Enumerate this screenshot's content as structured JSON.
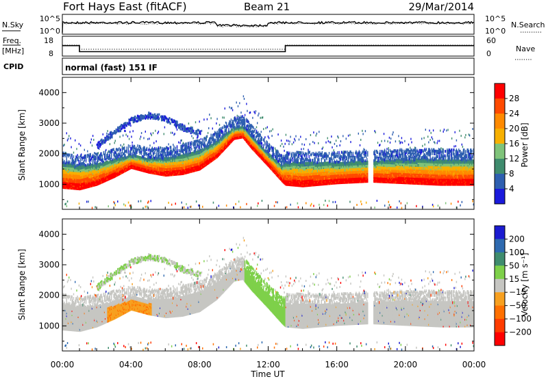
{
  "header": {
    "radar": "Fort Hays East (fitACF)",
    "beam": "Beam 21",
    "date": "29/Mar/2014"
  },
  "noise_panel": {
    "left_label": "N.Sky",
    "left_ticks": [
      "10^5",
      "10^0"
    ],
    "right_label": "N.Search",
    "right_ticks": [
      "10^5",
      "10^0"
    ]
  },
  "freq_panel": {
    "left_label_1": "Freq.",
    "left_label_2": "[MHz]",
    "left_ticks": [
      "18",
      "8"
    ],
    "right_label": "Nave",
    "right_ticks": [
      "60",
      "0"
    ]
  },
  "cpid_panel": {
    "label": "CPID",
    "mode": "normal (fast) 151 IF"
  },
  "power_legend": {
    "label": "Power [dB]",
    "ticks": [
      "28",
      "24",
      "20",
      "16",
      "12",
      "8",
      "4"
    ],
    "colors": [
      "#ff0000",
      "#ff4a00",
      "#ff8a00",
      "#f7b000",
      "#7fc37a",
      "#3f8c6e",
      "#2e5fb0",
      "#1a1adc"
    ]
  },
  "velocity_legend": {
    "label": "Velocity [m s⁻¹]",
    "ticks": [
      "200",
      "100",
      "50",
      "15",
      "−15",
      "−50",
      "−100",
      "−200"
    ],
    "colors": [
      "#1b1bd0",
      "#2e6ab0",
      "#3f8c6e",
      "#7ed04a",
      "#c6c6c2",
      "#f7a020",
      "#ff7000",
      "#ff3c00",
      "#ff0000"
    ]
  },
  "chart_data": {
    "type": "heatmap",
    "xlabel": "Time UT",
    "x_ticks": [
      "00:00",
      "04:00",
      "08:00",
      "12:00",
      "16:00",
      "20:00",
      "00:00"
    ],
    "xlim_hours": [
      0,
      24
    ],
    "ylabel": "Slant Range [km]",
    "y_ticks": [
      1000,
      2000,
      3000,
      4000
    ],
    "ylim_km": [
      180,
      4500
    ],
    "frequency_mhz_segments": [
      {
        "from_hour": 0.0,
        "to_hour": 1.0,
        "value": 14.5
      },
      {
        "from_hour": 1.0,
        "to_hour": 13.0,
        "value": 10.5
      },
      {
        "from_hour": 13.0,
        "to_hour": 24.0,
        "value": 14.5
      }
    ],
    "main_echo_band": [
      {
        "hour": 0.0,
        "lower_km": 900,
        "upper_km": 1700
      },
      {
        "hour": 1.0,
        "lower_km": 850,
        "upper_km": 1600
      },
      {
        "hour": 2.0,
        "lower_km": 1000,
        "upper_km": 1650
      },
      {
        "hour": 3.0,
        "lower_km": 1250,
        "upper_km": 1800
      },
      {
        "hour": 4.0,
        "lower_km": 1550,
        "upper_km": 1950
      },
      {
        "hour": 5.0,
        "lower_km": 1400,
        "upper_km": 1850
      },
      {
        "hour": 6.0,
        "lower_km": 1300,
        "upper_km": 1850
      },
      {
        "hour": 7.0,
        "lower_km": 1350,
        "upper_km": 1950
      },
      {
        "hour": 8.0,
        "lower_km": 1500,
        "upper_km": 2100
      },
      {
        "hour": 9.0,
        "lower_km": 1900,
        "upper_km": 2400
      },
      {
        "hour": 10.0,
        "lower_km": 2500,
        "upper_km": 2850
      },
      {
        "hour": 10.5,
        "lower_km": 2550,
        "upper_km": 2900
      },
      {
        "hour": 11.0,
        "lower_km": 2200,
        "upper_km": 2600
      },
      {
        "hour": 12.0,
        "lower_km": 1600,
        "upper_km": 2000
      },
      {
        "hour": 12.8,
        "lower_km": 1100,
        "upper_km": 1600
      },
      {
        "hour": 13.0,
        "lower_km": 1000,
        "upper_km": 1700
      },
      {
        "hour": 14.0,
        "lower_km": 950,
        "upper_km": 1700
      },
      {
        "hour": 16.0,
        "lower_km": 1050,
        "upper_km": 1700
      },
      {
        "hour": 17.8,
        "lower_km": 1100,
        "upper_km": 1750
      },
      {
        "hour": 18.1,
        "lower_km": 1100,
        "upper_km": 1750
      },
      {
        "hour": 20.0,
        "lower_km": 1050,
        "upper_km": 1800
      },
      {
        "hour": 22.0,
        "lower_km": 1000,
        "upper_km": 1800
      },
      {
        "hour": 24.0,
        "lower_km": 1000,
        "upper_km": 1800
      }
    ],
    "upper_arc": [
      {
        "hour": 2.0,
        "range_km": 2300
      },
      {
        "hour": 3.0,
        "range_km": 2750
      },
      {
        "hour": 4.0,
        "range_km": 3150
      },
      {
        "hour": 5.0,
        "range_km": 3300
      },
      {
        "hour": 6.0,
        "range_km": 3200
      },
      {
        "hour": 7.0,
        "range_km": 2900
      },
      {
        "hour": 8.0,
        "range_km": 2700
      }
    ]
  }
}
